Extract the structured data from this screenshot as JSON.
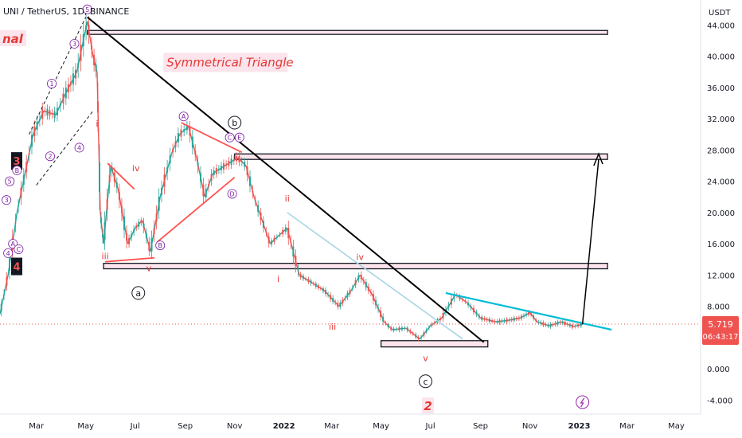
{
  "header": {
    "title": "UNI / TetherUS, 1D, BINANCE",
    "partial_label": "nal"
  },
  "chart_data": {
    "type": "line",
    "symbol": "UNI / TetherUS",
    "interval": "1D",
    "exchange": "BINANCE",
    "y_axis_unit": "USDT",
    "y_ticks": [
      "44.000",
      "40.000",
      "36.000",
      "32.000",
      "28.000",
      "24.000",
      "20.000",
      "16.000",
      "12.000",
      "8.000",
      "4.000",
      "0.000",
      "-4.000"
    ],
    "y_tick_values": [
      44,
      40,
      36,
      32,
      28,
      24,
      20,
      16,
      12,
      8,
      4,
      0,
      -4
    ],
    "ylim": [
      -5.8,
      47.2
    ],
    "x_ticks": [
      "Mar",
      "May",
      "Jul",
      "Sep",
      "Nov",
      "2022",
      "Mar",
      "May",
      "Jul",
      "Sep",
      "Nov",
      "2023",
      "Mar",
      "May"
    ],
    "x_tick_dates": [
      "2021-03-01",
      "2021-05-01",
      "2021-07-01",
      "2021-09-01",
      "2021-11-01",
      "2022-01-01",
      "2022-03-01",
      "2022-05-01",
      "2022-07-01",
      "2022-09-01",
      "2022-11-01",
      "2023-01-01",
      "2023-03-01",
      "2023-05-01"
    ],
    "xlim": [
      "2021-01-15",
      "2023-05-31"
    ],
    "grid": false,
    "last_price": "5.719",
    "countdown": "06:43:17",
    "colors": {
      "up": "#26a69a",
      "down": "#ef5350",
      "price_line": "#ef5350",
      "triangle_edge": "#00bcd4",
      "main_trendline": "#000000",
      "channel": "#ff5252"
    },
    "series": [
      {
        "values": [
          [
            "2021-01-15",
            7.0
          ],
          [
            "2021-01-25",
            12.0
          ],
          [
            "2021-02-05",
            20.0
          ],
          [
            "2021-02-15",
            25.0
          ],
          [
            "2021-02-25",
            30.0
          ],
          [
            "2021-03-10",
            33.0
          ],
          [
            "2021-03-25",
            32.5
          ],
          [
            "2021-04-05",
            35.0
          ],
          [
            "2021-04-20",
            38.0
          ],
          [
            "2021-05-03",
            44.5
          ],
          [
            "2021-05-10",
            40.0
          ],
          [
            "2021-05-15",
            38.0
          ],
          [
            "2021-05-19",
            20.0
          ],
          [
            "2021-05-23",
            16.0
          ],
          [
            "2021-06-01",
            26.0
          ],
          [
            "2021-06-10",
            23.0
          ],
          [
            "2021-06-22",
            16.0
          ],
          [
            "2021-07-01",
            18.0
          ],
          [
            "2021-07-10",
            19.0
          ],
          [
            "2021-07-20",
            15.0
          ],
          [
            "2021-08-01",
            22.0
          ],
          [
            "2021-08-15",
            27.5
          ],
          [
            "2021-08-25",
            30.0
          ],
          [
            "2021-09-05",
            31.0
          ],
          [
            "2021-09-15",
            27.0
          ],
          [
            "2021-09-25",
            22.0
          ],
          [
            "2021-10-05",
            25.0
          ],
          [
            "2021-10-20",
            26.0
          ],
          [
            "2021-11-05",
            27.0
          ],
          [
            "2021-11-15",
            26.0
          ],
          [
            "2021-11-25",
            22.0
          ],
          [
            "2021-12-05",
            19.0
          ],
          [
            "2021-12-15",
            16.0
          ],
          [
            "2021-12-25",
            17.0
          ],
          [
            "2022-01-05",
            18.0
          ],
          [
            "2022-01-20",
            12.0
          ],
          [
            "2022-02-05",
            11.0
          ],
          [
            "2022-02-20",
            10.0
          ],
          [
            "2022-03-10",
            8.0
          ],
          [
            "2022-03-25",
            10.0
          ],
          [
            "2022-04-05",
            12.0
          ],
          [
            "2022-04-20",
            9.5
          ],
          [
            "2022-05-05",
            6.0
          ],
          [
            "2022-05-15",
            5.0
          ],
          [
            "2022-06-01",
            5.2
          ],
          [
            "2022-06-18",
            3.8
          ],
          [
            "2022-07-01",
            5.5
          ],
          [
            "2022-07-15",
            6.5
          ],
          [
            "2022-08-01",
            9.5
          ],
          [
            "2022-08-15",
            8.5
          ],
          [
            "2022-09-01",
            6.5
          ],
          [
            "2022-09-20",
            6.0
          ],
          [
            "2022-10-05",
            6.2
          ],
          [
            "2022-10-20",
            6.5
          ],
          [
            "2022-11-01",
            7.2
          ],
          [
            "2022-11-10",
            6.0
          ],
          [
            "2022-11-25",
            5.5
          ],
          [
            "2022-12-10",
            6.0
          ],
          [
            "2022-12-25",
            5.4
          ],
          [
            "2023-01-05",
            5.7
          ]
        ]
      }
    ],
    "annotations": {
      "title_box": "Symmetrical Triangle",
      "zones": [
        {
          "y": [
            42.8,
            43.3
          ],
          "x": [
            "2021-05-03",
            "2023-02-05"
          ]
        },
        {
          "y": [
            26.8,
            27.5
          ],
          "x": [
            "2021-11-01",
            "2023-02-05"
          ]
        },
        {
          "y": [
            12.8,
            13.5
          ],
          "x": [
            "2021-05-23",
            "2023-02-05"
          ]
        },
        {
          "y": [
            2.8,
            3.6
          ],
          "x": [
            "2022-05-01",
            "2022-09-10"
          ]
        }
      ],
      "wave_labels": [
        {
          "text": "nal",
          "style": "pink-box",
          "date": "2021-01-15",
          "y": 42
        },
        {
          "text": "3",
          "style": "black-box",
          "date": "2021-01-15",
          "y": 26.5
        },
        {
          "text": "4",
          "style": "black-box",
          "date": "2021-01-15",
          "y": 13.0
        },
        {
          "text": "2",
          "style": "pink-box",
          "date": "2022-06-28",
          "y": -5.0
        },
        {
          "text": "b",
          "style": "black-circle",
          "date": "2021-11-01",
          "y": 31.5
        },
        {
          "text": "a",
          "style": "black-circle",
          "date": "2021-07-05",
          "y": 9.7
        },
        {
          "text": "c",
          "style": "black-circle",
          "date": "2022-06-25",
          "y": -1.6
        },
        {
          "text": "A",
          "style": "purple-circle",
          "date": "2021-08-30",
          "y": 32.3
        },
        {
          "text": "B",
          "style": "purple-circle",
          "date": "2021-08-01",
          "y": 15.8
        },
        {
          "text": "C",
          "style": "purple-circle",
          "date": "2021-10-26",
          "y": 29.6
        },
        {
          "text": "E",
          "style": "purple-circle",
          "date": "2021-11-07",
          "y": 29.6
        },
        {
          "text": "D",
          "style": "purple-circle",
          "date": "2021-10-29",
          "y": 22.4
        },
        {
          "text": "1",
          "style": "purple-circle",
          "date": "2021-03-20",
          "y": 36.5
        },
        {
          "text": "2",
          "style": "purple-circle",
          "date": "2021-03-18",
          "y": 27.2
        },
        {
          "text": "3",
          "style": "purple-circle",
          "date": "2021-04-17",
          "y": 41.6
        },
        {
          "text": "4",
          "style": "purple-circle",
          "date": "2021-04-23",
          "y": 28.3
        },
        {
          "text": "5",
          "style": "purple-circle",
          "date": "2021-05-03",
          "y": 46.0
        },
        {
          "text": "3",
          "style": "purple-circle",
          "date": "2021-01-23",
          "y": 21.6
        },
        {
          "text": "5",
          "style": "purple-circle",
          "date": "2021-01-27",
          "y": 24.0
        },
        {
          "text": "B",
          "style": "purple-circle",
          "date": "2021-02-05",
          "y": 25.4
        },
        {
          "text": "A",
          "style": "purple-circle",
          "date": "2021-01-31",
          "y": 16.0
        },
        {
          "text": "C",
          "style": "purple-circle",
          "date": "2021-02-07",
          "y": 15.3
        },
        {
          "text": "4",
          "style": "purple-circle",
          "date": "2021-01-25",
          "y": 14.8
        },
        {
          "text": "iv",
          "style": "red-text",
          "date": "2021-07-02",
          "y": 25.3
        },
        {
          "text": "iii",
          "style": "red-text",
          "date": "2021-05-25",
          "y": 14.0
        },
        {
          "text": "v",
          "style": "red-text",
          "date": "2021-07-18",
          "y": 12.5
        },
        {
          "text": "ii",
          "style": "red-text",
          "date": "2022-01-05",
          "y": 21.4
        },
        {
          "text": "i",
          "style": "red-text",
          "date": "2021-12-25",
          "y": 11.1
        },
        {
          "text": "iv",
          "style": "red-text",
          "date": "2022-04-05",
          "y": 13.9
        },
        {
          "text": "iii",
          "style": "red-text",
          "date": "2022-03-02",
          "y": 5.0
        },
        {
          "text": "v",
          "style": "red-text",
          "date": "2022-06-25",
          "y": 1.0
        },
        {
          "text": "i",
          "style": "red-text",
          "date": "2021-05-15",
          "y": 31.0
        }
      ]
    }
  }
}
